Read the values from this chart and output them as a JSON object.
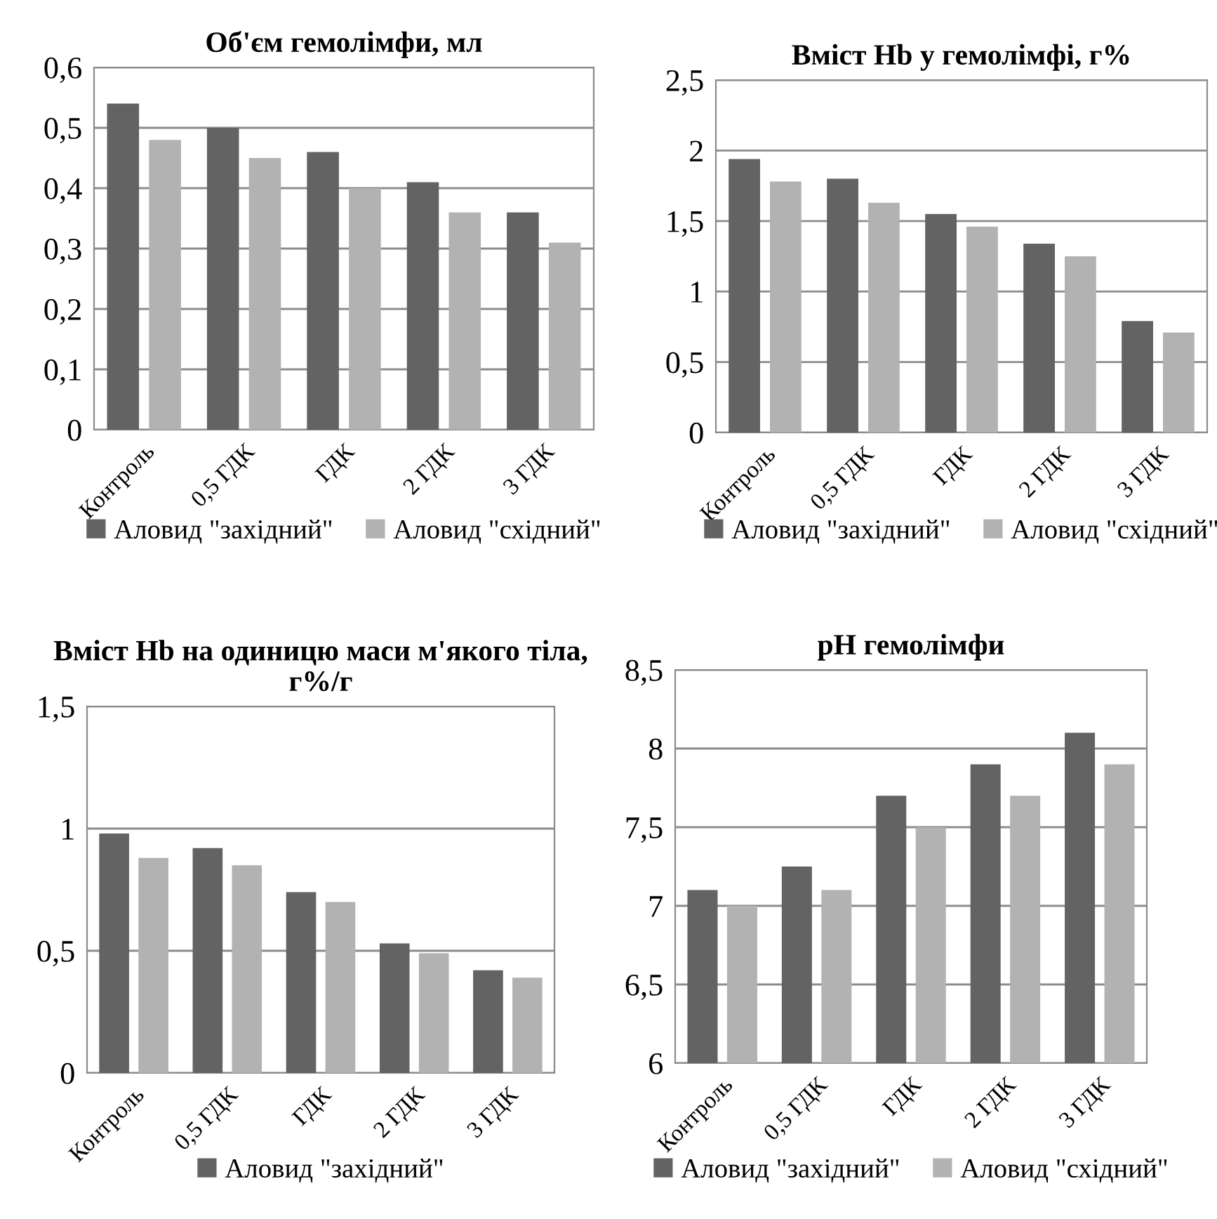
{
  "chart_data": [
    {
      "type": "bar",
      "title": "Об'єм гемолімфи, мл",
      "categories": [
        "Контроль",
        "0,5 ГДК",
        "ГДК",
        "2 ГДК",
        "3 ГДК"
      ],
      "series": [
        {
          "name": "Аловид \"західний\"",
          "color": "#636363",
          "values": [
            0.54,
            0.5,
            0.46,
            0.41,
            0.36
          ]
        },
        {
          "name": "Аловид \"східний\"",
          "color": "#b2b2b2",
          "values": [
            0.48,
            0.45,
            0.4,
            0.36,
            0.31
          ]
        }
      ],
      "ylim": [
        0,
        0.6
      ],
      "yticks": [
        {
          "value": 0,
          "label": "0"
        },
        {
          "value": 0.1,
          "label": "0,1"
        },
        {
          "value": 0.2,
          "label": "0,2"
        },
        {
          "value": 0.3,
          "label": "0,3"
        },
        {
          "value": 0.4,
          "label": "0,4"
        },
        {
          "value": 0.5,
          "label": "0,5"
        },
        {
          "value": 0.6,
          "label": "0,6"
        }
      ],
      "grid": "y",
      "legend": "bottom"
    },
    {
      "type": "bar",
      "title": "Вміст Hb у гемолімфі, г%",
      "categories": [
        "Контроль",
        "0,5 ГДК",
        "ГДК",
        "2 ГДК",
        "3 ГДК"
      ],
      "series": [
        {
          "name": "Аловид \"західний\"",
          "color": "#636363",
          "values": [
            1.94,
            1.8,
            1.55,
            1.34,
            0.79
          ]
        },
        {
          "name": "Аловид \"східний\"",
          "color": "#b2b2b2",
          "values": [
            1.78,
            1.63,
            1.46,
            1.25,
            0.71
          ]
        }
      ],
      "ylim": [
        0,
        2.5
      ],
      "yticks": [
        {
          "value": 0,
          "label": "0"
        },
        {
          "value": 0.5,
          "label": "0,5"
        },
        {
          "value": 1,
          "label": "1"
        },
        {
          "value": 1.5,
          "label": "1,5"
        },
        {
          "value": 2,
          "label": "2"
        },
        {
          "value": 2.5,
          "label": "2,5"
        }
      ],
      "grid": "y",
      "legend": "bottom"
    },
    {
      "type": "bar",
      "title": "Вміст Hb на одиницю маси м'якого тіла, г%/г",
      "categories": [
        "Контроль",
        "0,5 ГДК",
        "ГДК",
        "2 ГДК",
        "3 ГДК"
      ],
      "series": [
        {
          "name": "Аловид \"західний\"",
          "color": "#636363",
          "values": [
            0.98,
            0.92,
            0.74,
            0.53,
            0.42
          ]
        },
        {
          "color": "#b2b2b2",
          "values": [
            0.88,
            0.85,
            0.7,
            0.49,
            0.39
          ]
        }
      ],
      "ylim": [
        0,
        1.5
      ],
      "yticks": [
        {
          "value": 0,
          "label": "0"
        },
        {
          "value": 0.5,
          "label": "0,5"
        },
        {
          "value": 1,
          "label": "1"
        },
        {
          "value": 1.5,
          "label": "1,5"
        }
      ],
      "grid": "y",
      "legend": "bottom"
    },
    {
      "type": "bar",
      "title": "pH гемолімфи",
      "categories": [
        "Контроль",
        "0,5 ГДК",
        "ГДК",
        "2 ГДК",
        "3 ГДК"
      ],
      "series": [
        {
          "name": "Аловид \"західний\"",
          "color": "#636363",
          "values": [
            7.1,
            7.25,
            7.7,
            7.9,
            8.1
          ]
        },
        {
          "name": "Аловид \"східний\"",
          "color": "#b2b2b2",
          "values": [
            7.0,
            7.1,
            7.5,
            7.7,
            7.9
          ]
        }
      ],
      "ylim": [
        6,
        8.5
      ],
      "yticks": [
        {
          "value": 6,
          "label": "6"
        },
        {
          "value": 6.5,
          "label": "6,5"
        },
        {
          "value": 7,
          "label": "7"
        },
        {
          "value": 7.5,
          "label": "7,5"
        },
        {
          "value": 8,
          "label": "8"
        },
        {
          "value": 8.5,
          "label": "8,5"
        }
      ],
      "grid": "y",
      "legend": "bottom"
    }
  ]
}
